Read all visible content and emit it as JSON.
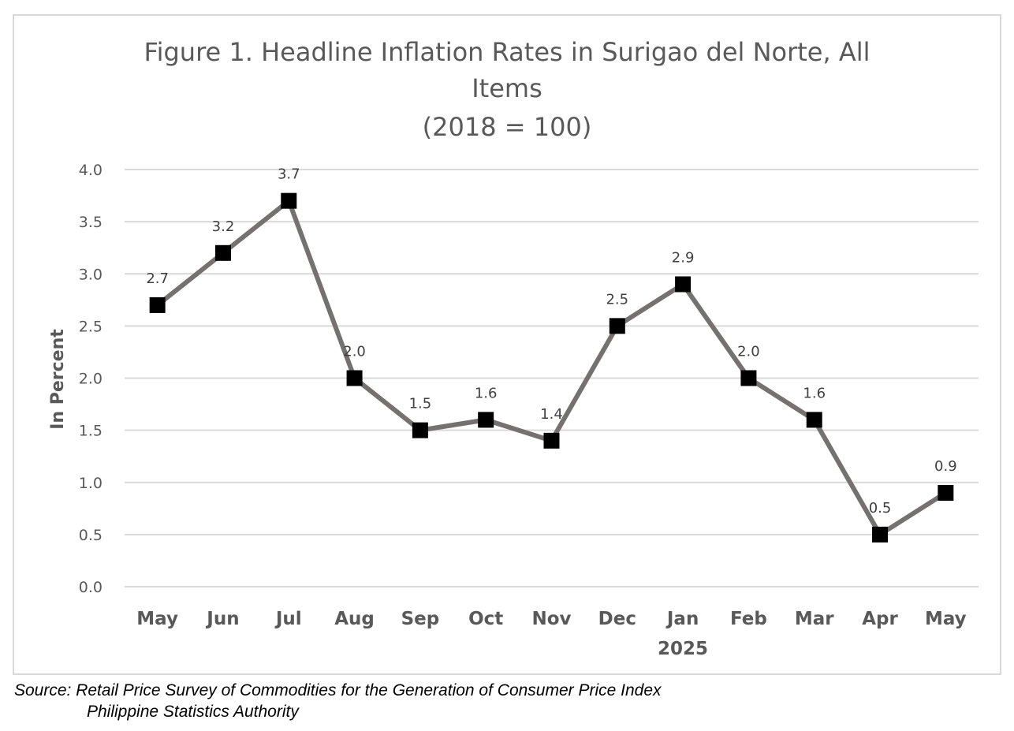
{
  "chart_data": {
    "type": "line",
    "title_lines": [
      "Figure 1.  Headline Inflation Rates in Surigao del Norte, All",
      "Items",
      "(2018 = 100)"
    ],
    "categories": [
      "May",
      "Jun",
      "Jul",
      "Aug",
      "Sep",
      "Oct",
      "Nov",
      "Dec",
      "Jan",
      "Feb",
      "Mar",
      "Apr",
      "May"
    ],
    "year_label": "2025",
    "series": [
      {
        "values": [
          2.7,
          3.2,
          3.7,
          2.0,
          1.5,
          1.6,
          1.4,
          2.5,
          2.9,
          2.0,
          1.6,
          0.5,
          0.9
        ]
      }
    ],
    "data_labels": [
      "2.7",
      "3.2",
      "3.7",
      "2.0",
      "1.5",
      "1.6",
      "1.4",
      "2.5",
      "2.9",
      "2.0",
      "1.6",
      "0.5",
      "0.9"
    ],
    "ylabel": "In Percent",
    "xlabel": "",
    "ylim": [
      0,
      4
    ],
    "yticks": [
      "0.0",
      "0.5",
      "1.0",
      "1.5",
      "2.0",
      "2.5",
      "3.0",
      "3.5",
      "4.0"
    ],
    "grid": true,
    "legend": "none",
    "line_color": "#767171",
    "marker_color": "#000000",
    "marker": "square"
  },
  "source": {
    "line1": "Source: Retail Price Survey of Commodities for the Generation of Consumer Price Index",
    "line2": "Philippine Statistics Authority"
  }
}
